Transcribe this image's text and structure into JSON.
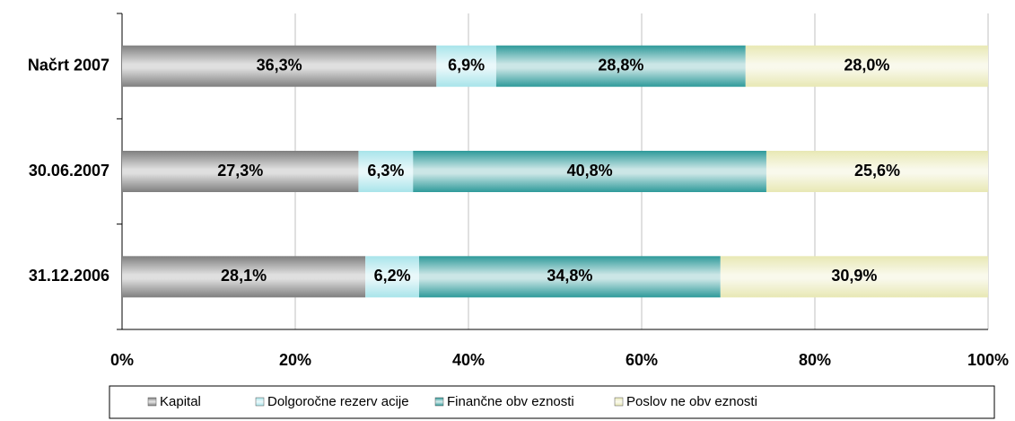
{
  "chart_data": {
    "type": "stacked-bar-horizontal",
    "categories": [
      "Načrt 2007",
      "30.06.2007",
      "31.12.2006"
    ],
    "series": [
      {
        "name": "Kapital",
        "color": "#7f7f7f",
        "values": [
          36.3,
          27.3,
          28.1
        ],
        "value_labels": [
          "36,3%",
          "27,3%",
          "28,1%"
        ]
      },
      {
        "name": "Dolgoročne rezerv acije",
        "color": "#a8e4ea",
        "values": [
          6.9,
          6.3,
          6.2
        ],
        "value_labels": [
          "6,9%",
          "6,3%",
          "6,2%"
        ]
      },
      {
        "name": "Finančne obv eznosti",
        "color": "#2e9a9a",
        "values": [
          28.8,
          40.8,
          34.8
        ],
        "value_labels": [
          "28,8%",
          "40,8%",
          "34,8%"
        ]
      },
      {
        "name": "Poslov ne obv eznosti",
        "color": "#e8e8b4",
        "values": [
          28.0,
          25.6,
          30.9
        ],
        "value_labels": [
          "28,0%",
          "25,6%",
          "30,9%"
        ]
      }
    ],
    "xlim": [
      0,
      100
    ],
    "xticks": [
      {
        "value": 0,
        "label": "0%"
      },
      {
        "value": 20,
        "label": "20%"
      },
      {
        "value": 40,
        "label": "40%"
      },
      {
        "value": 60,
        "label": "60%"
      },
      {
        "value": 80,
        "label": "80%"
      },
      {
        "value": 100,
        "label": "100%"
      }
    ],
    "grid": true,
    "legend": "bottom"
  }
}
